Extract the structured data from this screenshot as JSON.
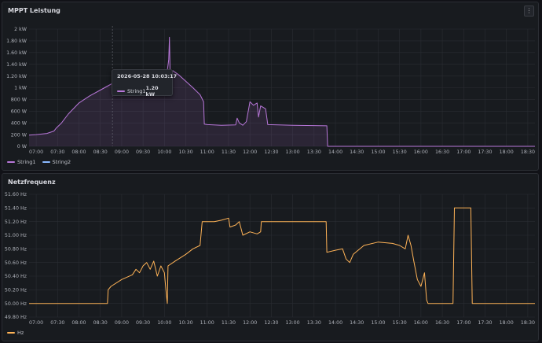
{
  "colors": {
    "string1": "#b877d9",
    "string2": "#8ab8ff",
    "hz": "#ffb357"
  },
  "panels": {
    "mppt": {
      "title": "MPPT Leistung",
      "menu_icon": "kebab-menu-icon",
      "legend": [
        "String1",
        "String2"
      ],
      "tooltip": {
        "time": "2026-05-28 10:03:17",
        "series": "String1",
        "value": "1.20 kW"
      }
    },
    "freq": {
      "title": "Netzfrequenz",
      "legend": [
        "Hz"
      ]
    }
  },
  "chart_data": [
    {
      "type": "line",
      "title": "MPPT Leistung",
      "x_ticks": [
        "07:00",
        "07:30",
        "08:00",
        "08:30",
        "09:00",
        "09:30",
        "10:00",
        "10:30",
        "11:00",
        "11:30",
        "12:00",
        "12:30",
        "13:00",
        "13:30",
        "14:00",
        "14:30",
        "15:00",
        "15:30",
        "16:00",
        "16:30",
        "17:00",
        "17:30",
        "18:00",
        "18:30"
      ],
      "y_ticks": [
        "0 W",
        "200 W",
        "400 W",
        "600 W",
        "800 W",
        "1 kW",
        "1.20 kW",
        "1.40 kW",
        "1.60 kW",
        "1.80 kW",
        "2 kW"
      ],
      "ylim": [
        0,
        2000
      ],
      "xlim": [
        "06:50",
        "18:40"
      ],
      "series": [
        {
          "name": "String1",
          "points": [
            [
              "06:50",
              190
            ],
            [
              "07:00",
              200
            ],
            [
              "07:15",
              220
            ],
            [
              "07:25",
              260
            ],
            [
              "07:28",
              310
            ],
            [
              "07:35",
              390
            ],
            [
              "07:45",
              550
            ],
            [
              "08:00",
              740
            ],
            [
              "08:15",
              860
            ],
            [
              "08:30",
              960
            ],
            [
              "08:45",
              1060
            ],
            [
              "08:55",
              1140
            ],
            [
              "09:00",
              1170
            ],
            [
              "09:15",
              1240
            ],
            [
              "09:30",
              1270
            ],
            [
              "09:45",
              1240
            ],
            [
              "09:55",
              1190
            ],
            [
              "10:00",
              1180
            ],
            [
              "10:02",
              1260
            ],
            [
              "10:03",
              1200
            ],
            [
              "10:06",
              1480
            ],
            [
              "10:07",
              1860
            ],
            [
              "10:08",
              1250
            ],
            [
              "10:12",
              1290
            ],
            [
              "10:20",
              1220
            ],
            [
              "10:30",
              1110
            ],
            [
              "10:40",
              1000
            ],
            [
              "10:50",
              880
            ],
            [
              "10:55",
              760
            ],
            [
              "10:56",
              380
            ],
            [
              "11:00",
              370
            ],
            [
              "11:20",
              360
            ],
            [
              "11:40",
              365
            ],
            [
              "11:42",
              480
            ],
            [
              "11:45",
              400
            ],
            [
              "11:50",
              360
            ],
            [
              "11:55",
              420
            ],
            [
              "12:00",
              760
            ],
            [
              "12:05",
              700
            ],
            [
              "12:10",
              740
            ],
            [
              "12:12",
              500
            ],
            [
              "12:15",
              690
            ],
            [
              "12:22",
              640
            ],
            [
              "12:25",
              370
            ],
            [
              "12:40",
              365
            ],
            [
              "13:00",
              360
            ],
            [
              "13:30",
              355
            ],
            [
              "13:48",
              350
            ],
            [
              "13:49",
              0
            ],
            [
              "18:40",
              0
            ]
          ]
        },
        {
          "name": "String2",
          "points": []
        }
      ]
    },
    {
      "type": "line",
      "title": "Netzfrequenz",
      "x_ticks": [
        "07:00",
        "07:30",
        "08:00",
        "08:30",
        "09:00",
        "09:30",
        "10:00",
        "10:30",
        "11:00",
        "11:30",
        "12:00",
        "12:30",
        "13:00",
        "13:30",
        "14:00",
        "14:30",
        "15:00",
        "15:30",
        "16:00",
        "16:30",
        "17:00",
        "17:30",
        "18:00",
        "18:30"
      ],
      "y_ticks": [
        "49.80 Hz",
        "50.00 Hz",
        "50.20 Hz",
        "50.40 Hz",
        "50.60 Hz",
        "50.80 Hz",
        "51.00 Hz",
        "51.20 Hz",
        "51.40 Hz",
        "51.60 Hz"
      ],
      "ylim": [
        49.8,
        51.6
      ],
      "xlim": [
        "06:50",
        "18:40"
      ],
      "series": [
        {
          "name": "Hz",
          "points": [
            [
              "06:50",
              50.0
            ],
            [
              "08:35",
              50.0
            ],
            [
              "08:40",
              50.0
            ],
            [
              "08:41",
              50.2
            ],
            [
              "08:45",
              50.25
            ],
            [
              "09:00",
              50.35
            ],
            [
              "09:15",
              50.42
            ],
            [
              "09:20",
              50.5
            ],
            [
              "09:25",
              50.45
            ],
            [
              "09:30",
              50.55
            ],
            [
              "09:35",
              50.6
            ],
            [
              "09:40",
              50.5
            ],
            [
              "09:45",
              50.62
            ],
            [
              "09:50",
              50.4
            ],
            [
              "09:55",
              50.55
            ],
            [
              "10:00",
              50.45
            ],
            [
              "10:02",
              50.2
            ],
            [
              "10:04",
              50.0
            ],
            [
              "10:05",
              50.55
            ],
            [
              "10:15",
              50.62
            ],
            [
              "10:30",
              50.72
            ],
            [
              "10:40",
              50.8
            ],
            [
              "10:50",
              50.85
            ],
            [
              "10:53",
              51.2
            ],
            [
              "11:10",
              51.2
            ],
            [
              "11:20",
              51.22
            ],
            [
              "11:30",
              51.25
            ],
            [
              "11:32",
              51.12
            ],
            [
              "11:40",
              51.15
            ],
            [
              "11:45",
              51.2
            ],
            [
              "11:50",
              51.0
            ],
            [
              "12:00",
              51.05
            ],
            [
              "12:10",
              51.02
            ],
            [
              "12:15",
              51.05
            ],
            [
              "12:16",
              51.2
            ],
            [
              "13:00",
              51.2
            ],
            [
              "13:30",
              51.2
            ],
            [
              "13:47",
              51.2
            ],
            [
              "13:48",
              50.75
            ],
            [
              "14:00",
              50.78
            ],
            [
              "14:10",
              50.8
            ],
            [
              "14:15",
              50.65
            ],
            [
              "14:20",
              50.6
            ],
            [
              "14:25",
              50.72
            ],
            [
              "14:40",
              50.85
            ],
            [
              "15:00",
              50.9
            ],
            [
              "15:20",
              50.88
            ],
            [
              "15:30",
              50.85
            ],
            [
              "15:38",
              50.8
            ],
            [
              "15:42",
              51.0
            ],
            [
              "15:46",
              50.85
            ],
            [
              "15:50",
              50.62
            ],
            [
              "15:55",
              50.35
            ],
            [
              "16:00",
              50.25
            ],
            [
              "16:05",
              50.45
            ],
            [
              "16:08",
              50.05
            ],
            [
              "16:10",
              50.0
            ],
            [
              "16:45",
              50.0
            ],
            [
              "16:47",
              51.4
            ],
            [
              "17:10",
              51.4
            ],
            [
              "17:12",
              50.0
            ],
            [
              "18:40",
              50.0
            ]
          ]
        }
      ]
    }
  ]
}
